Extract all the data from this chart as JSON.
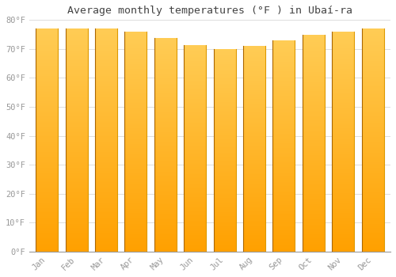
{
  "title": "Average monthly temperatures (°F ) in Ubaí-ra",
  "months": [
    "Jan",
    "Feb",
    "Mar",
    "Apr",
    "May",
    "Jun",
    "Jul",
    "Aug",
    "Sep",
    "Oct",
    "Nov",
    "Dec"
  ],
  "values": [
    77.2,
    77.2,
    77.2,
    75.9,
    73.9,
    71.2,
    69.9,
    71.1,
    72.9,
    74.8,
    75.9,
    77.0
  ],
  "bar_color_top": "#FFCC44",
  "bar_color_bottom": "#FFA000",
  "bar_border_color": "#CC7700",
  "ylim": [
    0,
    80
  ],
  "yticks": [
    0,
    10,
    20,
    30,
    40,
    50,
    60,
    70,
    80
  ],
  "ytick_labels": [
    "0°F",
    "10°F",
    "20°F",
    "30°F",
    "40°F",
    "50°F",
    "60°F",
    "70°F",
    "80°F"
  ],
  "background_color": "#ffffff",
  "grid_color": "#dddddd",
  "tick_color": "#999999",
  "title_fontsize": 9.5,
  "axis_fontsize": 7.5,
  "bar_width": 0.75
}
